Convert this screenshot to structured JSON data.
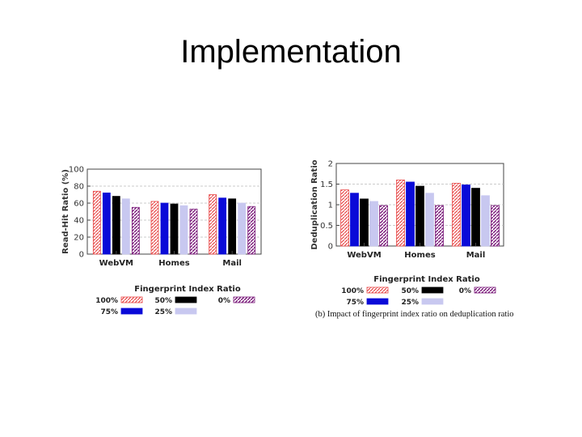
{
  "slide": {
    "title": "Implementation"
  },
  "colors": {
    "s100": "#e84a4a",
    "s75": "#0a0ad8",
    "s50": "#000000",
    "s25": "#c8c8f0",
    "s0": "#7a1a7a"
  },
  "chart_data": [
    {
      "type": "bar",
      "title": "",
      "xlabel": "",
      "ylabel": "Read-Hit Ratio (%)",
      "ylim": [
        0,
        100
      ],
      "yticks": [
        "0",
        "20",
        "40",
        "60",
        "80",
        "100"
      ],
      "categories": [
        "WebVM",
        "Homes",
        "Mail"
      ],
      "grid": "horizontal",
      "legend_title": "Fingerprint Index Ratio",
      "series": [
        {
          "name": "100%",
          "values": [
            74,
            62,
            70
          ]
        },
        {
          "name": "75%",
          "values": [
            72,
            60,
            66
          ]
        },
        {
          "name": "50%",
          "values": [
            68,
            59,
            65
          ]
        },
        {
          "name": "25%",
          "values": [
            65,
            57,
            60
          ]
        },
        {
          "name": "0%",
          "values": [
            55,
            53,
            56
          ]
        }
      ]
    },
    {
      "type": "bar",
      "title": "",
      "xlabel": "",
      "ylabel": "Deduplication Ratio",
      "ylim": [
        0,
        2
      ],
      "yticks": [
        "0",
        "0.5",
        "1",
        "1.5",
        "2"
      ],
      "categories": [
        "WebVM",
        "Homes",
        "Mail"
      ],
      "grid": "horizontal",
      "legend_title": "Fingerprint Index Ratio",
      "caption": "(b) Impact of fingerprint index ratio on deduplication ratio",
      "series": [
        {
          "name": "100%",
          "values": [
            1.36,
            1.6,
            1.52
          ]
        },
        {
          "name": "75%",
          "values": [
            1.28,
            1.55,
            1.48
          ]
        },
        {
          "name": "50%",
          "values": [
            1.14,
            1.45,
            1.4
          ]
        },
        {
          "name": "25%",
          "values": [
            1.08,
            1.28,
            1.22
          ]
        },
        {
          "name": "0%",
          "values": [
            0.98,
            0.98,
            0.98
          ]
        }
      ]
    }
  ]
}
